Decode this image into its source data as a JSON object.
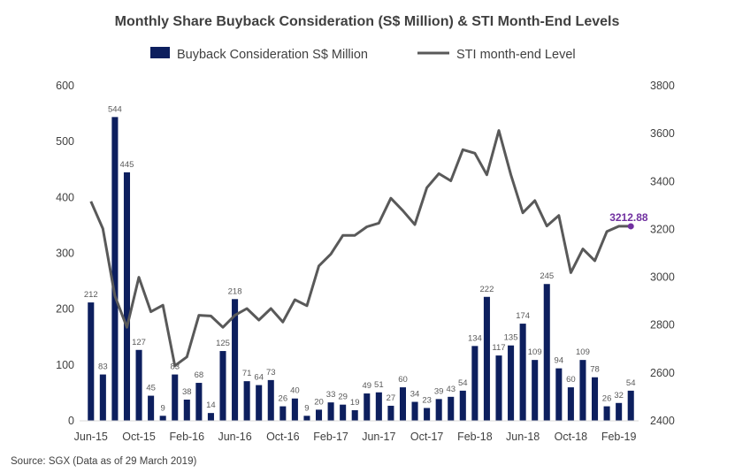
{
  "chart_data": {
    "type": "bar+line",
    "title": "Monthly Share Buyback Consideration (S$ Million) & STI Month-End Levels",
    "source": "Source: SGX (Data as of 29 March 2019)",
    "x_tick_labels": [
      "Jun-15",
      "Oct-15",
      "Feb-16",
      "Jun-16",
      "Oct-16",
      "Feb-17",
      "Jun-17",
      "Oct-17",
      "Feb-18",
      "Jun-18",
      "Oct-18",
      "Feb-19"
    ],
    "categories": [
      "Jun-15",
      "Jul-15",
      "Aug-15",
      "Sep-15",
      "Oct-15",
      "Nov-15",
      "Dec-15",
      "Jan-16",
      "Feb-16",
      "Mar-16",
      "Apr-16",
      "May-16",
      "Jun-16",
      "Jul-16",
      "Aug-16",
      "Sep-16",
      "Oct-16",
      "Nov-16",
      "Dec-16",
      "Jan-17",
      "Feb-17",
      "Mar-17",
      "Apr-17",
      "May-17",
      "Jun-17",
      "Jul-17",
      "Aug-17",
      "Sep-17",
      "Oct-17",
      "Nov-17",
      "Dec-17",
      "Jan-18",
      "Feb-18",
      "Mar-18",
      "Apr-18",
      "May-18",
      "Jun-18",
      "Jul-18",
      "Aug-18",
      "Sep-18",
      "Oct-18",
      "Nov-18",
      "Dec-18",
      "Jan-19",
      "Feb-19",
      "Mar-19"
    ],
    "series": [
      {
        "name": "Buyback Consideration S$ Million",
        "type": "bar",
        "axis": "left",
        "color": "#0d1f5e",
        "values": [
          212,
          83,
          544,
          445,
          127,
          45,
          9,
          83,
          38,
          68,
          14,
          125,
          218,
          71,
          64,
          73,
          26,
          40,
          9,
          20,
          33,
          29,
          19,
          49,
          51,
          27,
          60,
          34,
          23,
          39,
          43,
          54,
          134,
          222,
          117,
          135,
          174,
          109,
          245,
          94,
          60,
          109,
          78,
          26,
          32,
          54
        ],
        "labels": [
          "212",
          "83",
          "544",
          "445",
          "127",
          "45",
          "9",
          "83",
          "38",
          "68",
          "14",
          "125",
          "218",
          "71",
          "64",
          "73",
          "26",
          "40",
          "9",
          "20",
          "33",
          "29",
          "19",
          "49",
          "51",
          "27",
          "60",
          "34",
          "23",
          "39",
          "43",
          "54",
          "134",
          "222",
          "117",
          "135",
          "174",
          "109",
          "245",
          "94",
          "60",
          "109",
          "78",
          "26",
          "32",
          "54"
        ]
      },
      {
        "name": "STI month-end Level",
        "type": "line",
        "axis": "right",
        "color": "#595959",
        "values": [
          3317,
          3203,
          2922,
          2791,
          3000,
          2856,
          2883,
          2630,
          2667,
          2841,
          2838,
          2791,
          2841,
          2869,
          2821,
          2869,
          2813,
          2906,
          2881,
          3047,
          3097,
          3175,
          3175,
          3211,
          3226,
          3330,
          3278,
          3220,
          3374,
          3433,
          3403,
          3533,
          3518,
          3428,
          3613,
          3428,
          3269,
          3320,
          3214,
          3258,
          3019,
          3118,
          3069,
          3191,
          3213,
          3212.88
        ],
        "last_label": "3212.88",
        "last_point_color": "#7030a0"
      }
    ],
    "left_axis": {
      "ylim": [
        0,
        600
      ],
      "ticks": [
        "0",
        "100",
        "200",
        "300",
        "400",
        "500",
        "600"
      ]
    },
    "right_axis": {
      "ylim": [
        2400,
        3800
      ],
      "ticks": [
        "2400",
        "2600",
        "2800",
        "3000",
        "3200",
        "3400",
        "3600",
        "3800"
      ]
    },
    "legend_position": "top",
    "grid": false
  }
}
